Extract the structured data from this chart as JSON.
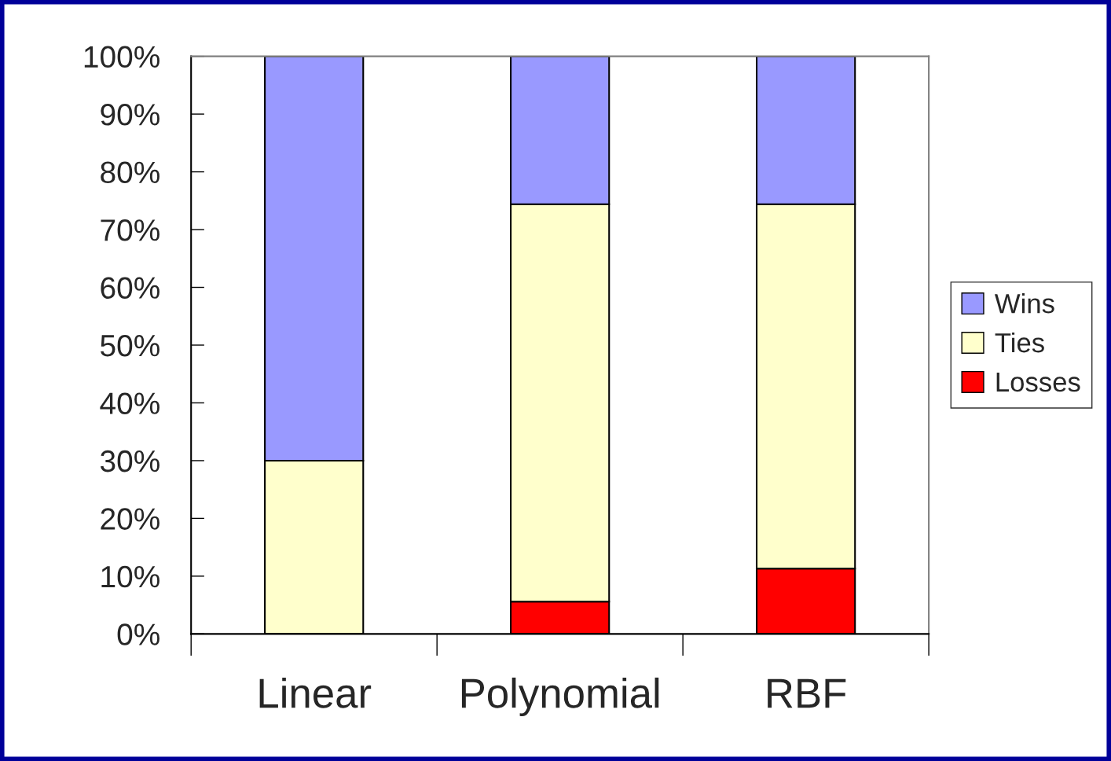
{
  "chart_data": {
    "type": "bar",
    "stacked": true,
    "categories": [
      "Linear",
      "Polynomial",
      "RBF"
    ],
    "series": [
      {
        "name": "Losses",
        "color": "#ff0000",
        "values": [
          0,
          5.6,
          11.3
        ]
      },
      {
        "name": "Ties",
        "color": "#ffffcc",
        "values": [
          30,
          68.8,
          63.1
        ]
      },
      {
        "name": "Wins",
        "color": "#9999ff",
        "values": [
          70,
          25.6,
          25.6
        ]
      }
    ],
    "ylim": [
      0,
      100
    ],
    "yticks": [
      {
        "value": 0,
        "label": "0%"
      },
      {
        "value": 10,
        "label": "10%"
      },
      {
        "value": 20,
        "label": "20%"
      },
      {
        "value": 30,
        "label": "30%"
      },
      {
        "value": 40,
        "label": "40%"
      },
      {
        "value": 50,
        "label": "50%"
      },
      {
        "value": 60,
        "label": "60%"
      },
      {
        "value": 70,
        "label": "70%"
      },
      {
        "value": 80,
        "label": "80%"
      },
      {
        "value": 90,
        "label": "90%"
      },
      {
        "value": 100,
        "label": "100%"
      }
    ],
    "grid": false,
    "legend": "right"
  }
}
